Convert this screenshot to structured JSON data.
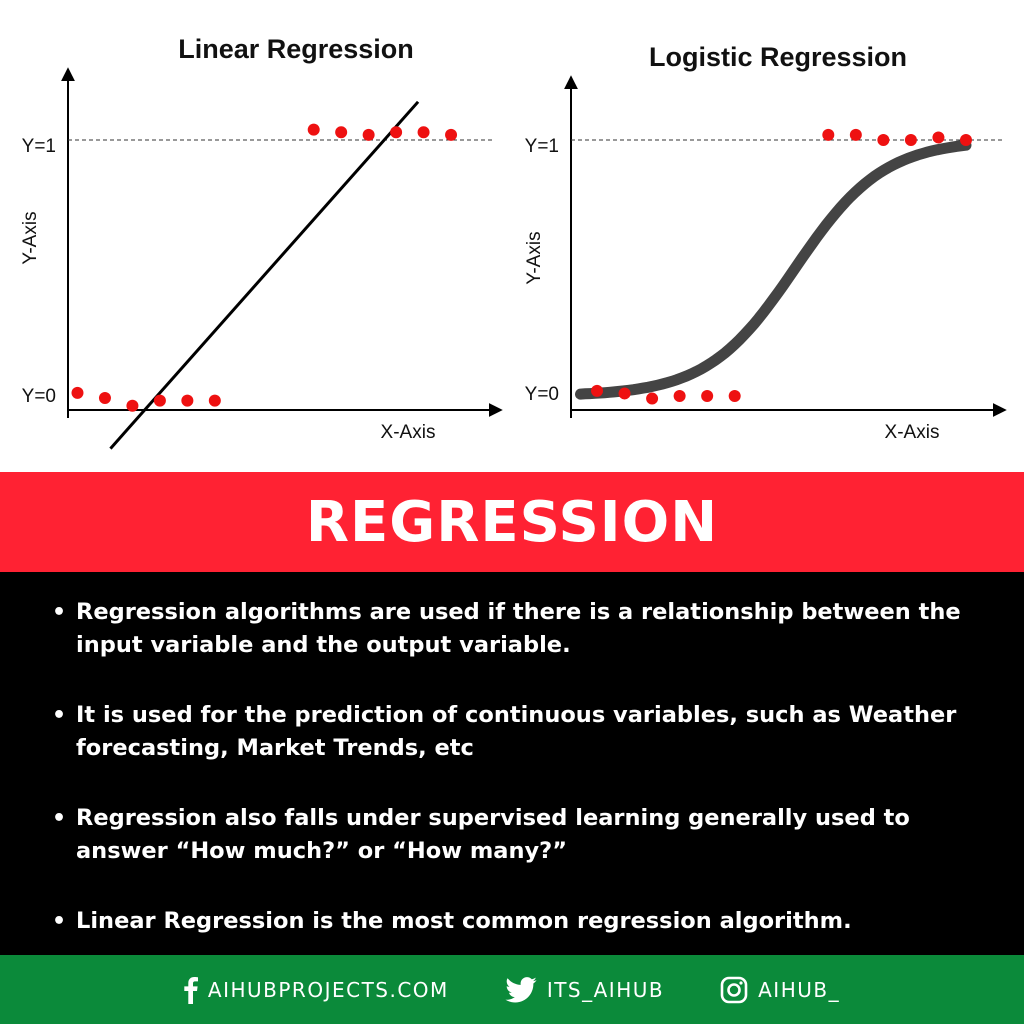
{
  "chart_data": [
    {
      "type": "scatter",
      "title": "Linear Regression",
      "xlabel": "X-Axis",
      "ylabel": "Y-Axis",
      "ytick_labels": [
        "Y=0",
        "Y=1"
      ],
      "points": [
        {
          "x": 0.0,
          "y": 0.02
        },
        {
          "x": 0.5,
          "y": 0.0
        },
        {
          "x": 1.0,
          "y": -0.03
        },
        {
          "x": 1.5,
          "y": -0.01
        },
        {
          "x": 2.0,
          "y": -0.01
        },
        {
          "x": 2.5,
          "y": -0.01
        },
        {
          "x": 4.3,
          "y": 1.04
        },
        {
          "x": 4.8,
          "y": 1.03
        },
        {
          "x": 5.3,
          "y": 1.02
        },
        {
          "x": 5.8,
          "y": 1.03
        },
        {
          "x": 6.3,
          "y": 1.03
        },
        {
          "x": 6.8,
          "y": 1.02
        }
      ],
      "fit_line": {
        "type": "linear",
        "slope": 0.24,
        "intercept": -0.34,
        "x_range": [
          0.6,
          6.2
        ]
      },
      "ylim": [
        -0.15,
        1.25
      ],
      "xlim": [
        -0.1,
        7.4
      ],
      "point_color": "#ee1111",
      "line_color": "#000000"
    },
    {
      "type": "scatter",
      "title": "Logistic Regression",
      "xlabel": "X-Axis",
      "ylabel": "Y-Axis",
      "ytick_labels": [
        "Y=0",
        "Y=1"
      ],
      "points": [
        {
          "x": 0.3,
          "y": 0.02
        },
        {
          "x": 0.8,
          "y": 0.01
        },
        {
          "x": 1.3,
          "y": -0.01
        },
        {
          "x": 1.8,
          "y": 0.0
        },
        {
          "x": 2.3,
          "y": 0.0
        },
        {
          "x": 2.8,
          "y": 0.0
        },
        {
          "x": 4.5,
          "y": 1.02
        },
        {
          "x": 5.0,
          "y": 1.02
        },
        {
          "x": 5.5,
          "y": 1.0
        },
        {
          "x": 6.0,
          "y": 1.0
        },
        {
          "x": 6.5,
          "y": 1.01
        },
        {
          "x": 7.0,
          "y": 1.0
        }
      ],
      "fit_curve": {
        "type": "sigmoid",
        "midpoint": 3.9,
        "steepness": 1.25,
        "x_range": [
          0.0,
          7.0
        ]
      },
      "ylim": [
        -0.15,
        1.25
      ],
      "xlim": [
        -0.1,
        7.4
      ],
      "point_color": "#ee1111",
      "line_color": "#444444"
    }
  ],
  "banner": {
    "title": "REGRESSION"
  },
  "bullets": [
    "Regression algorithms are used if there is a relationship between the input variable and the output variable.",
    "It is used for the prediction of continuous variables, such as Weather forecasting, Market Trends, etc",
    "Regression also falls under supervised learning generally used to answer “How much?” or “How many?”",
    "Linear Regression is the most common regression algorithm."
  ],
  "footer": {
    "facebook": {
      "icon": "facebook-icon",
      "label": "AIHUBPROJECTS.COM"
    },
    "twitter": {
      "icon": "twitter-icon",
      "label": "ITS_AIHUB"
    },
    "instagram": {
      "icon": "instagram-icon",
      "label": "AIHUB_"
    }
  },
  "colors": {
    "banner": "#ff2233",
    "content_bg": "#000000",
    "footer": "#0b8a3a"
  }
}
